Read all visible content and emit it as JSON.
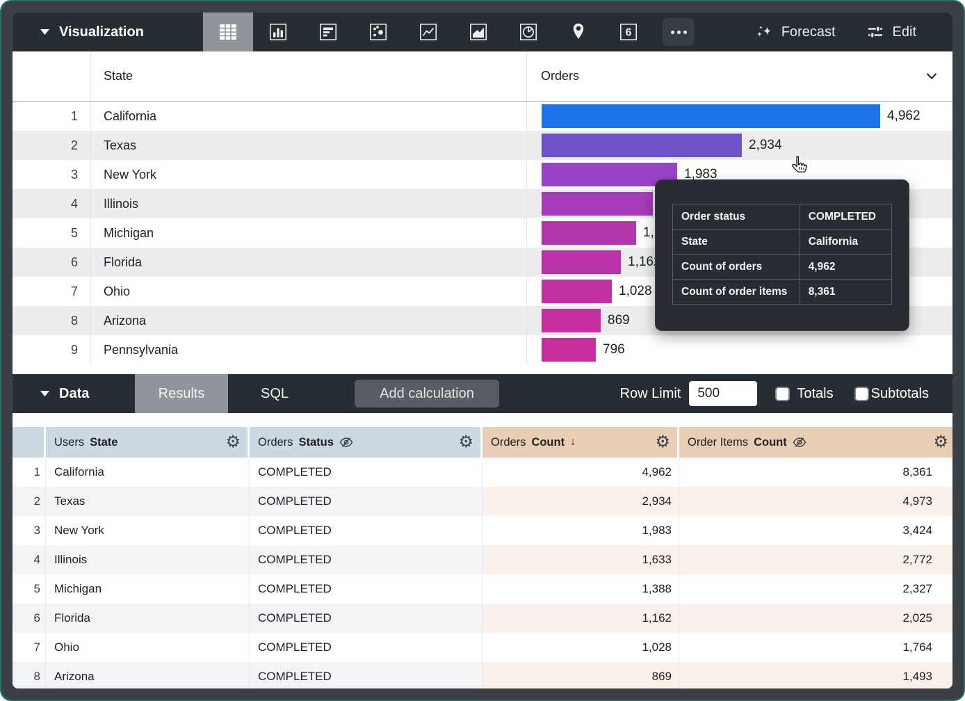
{
  "viz_toolbar": {
    "title": "Visualization",
    "icons": [
      {
        "name": "table-chart-icon",
        "selected": true
      },
      {
        "name": "bar-chart-icon",
        "selected": false
      },
      {
        "name": "funnel-chart-icon",
        "selected": false
      },
      {
        "name": "scatter-plot-icon",
        "selected": false
      },
      {
        "name": "line-chart-icon",
        "selected": false
      },
      {
        "name": "area-chart-icon",
        "selected": false
      },
      {
        "name": "pie-chart-icon",
        "selected": false
      },
      {
        "name": "map-pin-icon",
        "selected": false
      },
      {
        "name": "single-value-icon",
        "selected": false
      },
      {
        "name": "more-options-icon",
        "selected": false
      }
    ],
    "single_value_label": "6",
    "forecast_label": "Forecast",
    "edit_label": "Edit"
  },
  "chart_data": {
    "type": "bar",
    "orientation": "horizontal",
    "columns": [
      "State",
      "Orders"
    ],
    "categories": [
      "California",
      "Texas",
      "New York",
      "Illinois",
      "Michigan",
      "Florida",
      "Ohio",
      "Arizona",
      "Pennsylvania"
    ],
    "values": [
      4962,
      2934,
      1983,
      1633,
      1388,
      1162,
      1028,
      869,
      796
    ],
    "value_labels": [
      "4,962",
      "2,934",
      "1,983",
      "1,633",
      "1,388",
      "1,162",
      "1,028",
      "869",
      "796"
    ],
    "bar_colors": [
      "#1a73e8",
      "#6d52c9",
      "#9743c6",
      "#a53cb8",
      "#b236ab",
      "#ba33a6",
      "#c031a2",
      "#c32f9f",
      "#c52e9c"
    ],
    "xlim": [
      0,
      4962
    ],
    "legend_position": "none",
    "grid": false
  },
  "tooltip": {
    "rows": [
      [
        "Order status",
        "COMPLETED"
      ],
      [
        "State",
        "California"
      ],
      [
        "Count of orders",
        "4,962"
      ],
      [
        "Count of order items",
        "8,361"
      ]
    ]
  },
  "data_toolbar": {
    "title": "Data",
    "results_tab": "Results",
    "sql_tab": "SQL",
    "add_calculation_label": "Add calculation",
    "row_limit_label": "Row Limit",
    "row_limit_value": "500",
    "totals_label": "Totals",
    "subtotals_label": "Subtotals",
    "totals_checked": false,
    "subtotals_checked": false
  },
  "results_table": {
    "headers": [
      {
        "prefix": "Users",
        "field": "State",
        "type": "dimension"
      },
      {
        "prefix": "Orders",
        "field": "Status",
        "type": "dimension",
        "hidden": true
      },
      {
        "prefix": "Orders",
        "field": "Count",
        "type": "measure",
        "sort": "desc"
      },
      {
        "prefix": "Order Items",
        "field": "Count",
        "type": "measure",
        "hidden": true
      }
    ],
    "rows": [
      {
        "n": "1",
        "state": "California",
        "status": "COMPLETED",
        "count": "4,962",
        "items": "8,361"
      },
      {
        "n": "2",
        "state": "Texas",
        "status": "COMPLETED",
        "count": "2,934",
        "items": "4,973"
      },
      {
        "n": "3",
        "state": "New York",
        "status": "COMPLETED",
        "count": "1,983",
        "items": "3,424"
      },
      {
        "n": "4",
        "state": "Illinois",
        "status": "COMPLETED",
        "count": "1,633",
        "items": "2,772"
      },
      {
        "n": "5",
        "state": "Michigan",
        "status": "COMPLETED",
        "count": "1,388",
        "items": "2,327"
      },
      {
        "n": "6",
        "state": "Florida",
        "status": "COMPLETED",
        "count": "1,162",
        "items": "2,025"
      },
      {
        "n": "7",
        "state": "Ohio",
        "status": "COMPLETED",
        "count": "1,028",
        "items": "1,764"
      },
      {
        "n": "8",
        "state": "Arizona",
        "status": "COMPLETED",
        "count": "869",
        "items": "1,493"
      }
    ]
  },
  "colors": {
    "toolbar_bg": "#262d33",
    "selected_tab_bg": "#8f959a",
    "dimension_header_bg": "#ccd9e3",
    "measure_header_bg": "#eacdb5",
    "tooltip_bg": "#272d33",
    "bar_highlight": "#1a73e8"
  }
}
